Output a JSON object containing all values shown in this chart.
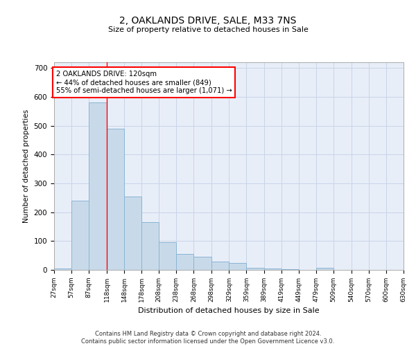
{
  "title": "2, OAKLANDS DRIVE, SALE, M33 7NS",
  "subtitle": "Size of property relative to detached houses in Sale",
  "xlabel": "Distribution of detached houses by size in Sale",
  "ylabel": "Number of detached properties",
  "bar_color": "#c8daea",
  "bar_edge_color": "#8ab4d4",
  "grid_color": "#c8d4e8",
  "background_color": "#e8eef8",
  "property_line_x": 118,
  "annotation_text": "2 OAKLANDS DRIVE: 120sqm\n← 44% of detached houses are smaller (849)\n55% of semi-detached houses are larger (1,071) →",
  "annotation_box_color": "white",
  "annotation_box_edge": "red",
  "property_line_color": "red",
  "footer": "Contains HM Land Registry data © Crown copyright and database right 2024.\nContains public sector information licensed under the Open Government Licence v3.0.",
  "bin_edges": [
    27,
    57,
    87,
    118,
    148,
    178,
    208,
    238,
    268,
    298,
    329,
    359,
    389,
    419,
    449,
    479,
    509,
    540,
    570,
    600,
    630
  ],
  "counts": [
    5,
    240,
    580,
    490,
    255,
    165,
    95,
    55,
    45,
    30,
    25,
    8,
    5,
    2,
    0,
    8,
    0,
    0,
    0,
    0
  ],
  "ylim": [
    0,
    720
  ],
  "yticks": [
    0,
    100,
    200,
    300,
    400,
    500,
    600,
    700
  ]
}
